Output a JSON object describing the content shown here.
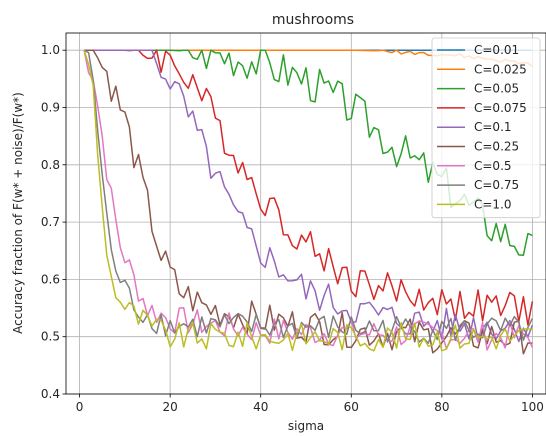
{
  "chart_data": {
    "type": "line",
    "title": "mushrooms",
    "xlabel": "sigma",
    "ylabel": "Accuracy fraction of F(w* + noise)/F(w*)",
    "xlim": [
      -3,
      103
    ],
    "ylim": [
      0.4,
      1.03
    ],
    "xticks": [
      0,
      20,
      40,
      60,
      80,
      100
    ],
    "yticks": [
      0.4,
      0.5,
      0.6,
      0.7,
      0.8,
      0.9,
      1.0
    ],
    "grid": true,
    "legend_position": "top-right",
    "x": {
      "start": 1,
      "end": 100,
      "count": 100
    },
    "series": [
      {
        "name": "C=0.01",
        "color": "#1f77b4",
        "anchors": [
          [
            1,
            1.0
          ],
          [
            100,
            1.0
          ]
        ],
        "noise": 0.0,
        "seed": 1
      },
      {
        "name": "C=0.025",
        "color": "#ff7f0e",
        "anchors": [
          [
            1,
            1.0
          ],
          [
            60,
            1.0
          ],
          [
            70,
            0.998
          ],
          [
            80,
            0.993
          ],
          [
            90,
            0.985
          ],
          [
            100,
            0.975
          ]
        ],
        "noise": 0.004,
        "seed": 2
      },
      {
        "name": "C=0.05",
        "color": "#2ca02c",
        "anchors": [
          [
            1,
            1.0
          ],
          [
            20,
            1.0
          ],
          [
            30,
            0.995
          ],
          [
            40,
            0.98
          ],
          [
            50,
            0.95
          ],
          [
            60,
            0.9
          ],
          [
            70,
            0.83
          ],
          [
            80,
            0.77
          ],
          [
            90,
            0.7
          ],
          [
            100,
            0.65
          ]
        ],
        "noise": 0.035,
        "seed": 3
      },
      {
        "name": "C=0.075",
        "color": "#d62728",
        "anchors": [
          [
            1,
            1.0
          ],
          [
            10,
            1.0
          ],
          [
            17,
            0.995
          ],
          [
            25,
            0.95
          ],
          [
            32,
            0.85
          ],
          [
            38,
            0.77
          ],
          [
            45,
            0.7
          ],
          [
            52,
            0.65
          ],
          [
            60,
            0.6
          ],
          [
            70,
            0.58
          ],
          [
            80,
            0.56
          ],
          [
            90,
            0.55
          ],
          [
            100,
            0.55
          ]
        ],
        "noise": 0.03,
        "seed": 4
      },
      {
        "name": "C=0.1",
        "color": "#9467bd",
        "anchors": [
          [
            1,
            1.0
          ],
          [
            15,
            1.0
          ],
          [
            20,
            0.95
          ],
          [
            25,
            0.87
          ],
          [
            30,
            0.78
          ],
          [
            35,
            0.7
          ],
          [
            40,
            0.65
          ],
          [
            50,
            0.58
          ],
          [
            60,
            0.55
          ],
          [
            70,
            0.53
          ],
          [
            80,
            0.52
          ],
          [
            100,
            0.52
          ]
        ],
        "noise": 0.03,
        "seed": 5
      },
      {
        "name": "C=0.25",
        "color": "#8c564b",
        "anchors": [
          [
            1,
            1.0
          ],
          [
            3,
            1.0
          ],
          [
            6,
            0.96
          ],
          [
            10,
            0.88
          ],
          [
            14,
            0.76
          ],
          [
            18,
            0.64
          ],
          [
            22,
            0.58
          ],
          [
            28,
            0.55
          ],
          [
            40,
            0.53
          ],
          [
            60,
            0.51
          ],
          [
            80,
            0.5
          ],
          [
            100,
            0.5
          ]
        ],
        "noise": 0.03,
        "seed": 6
      },
      {
        "name": "C=0.5",
        "color": "#e377c2",
        "anchors": [
          [
            1,
            1.0
          ],
          [
            3,
            0.96
          ],
          [
            5,
            0.85
          ],
          [
            7,
            0.74
          ],
          [
            9,
            0.66
          ],
          [
            12,
            0.6
          ],
          [
            15,
            0.55
          ],
          [
            20,
            0.53
          ],
          [
            40,
            0.51
          ],
          [
            100,
            0.5
          ]
        ],
        "noise": 0.025,
        "seed": 7
      },
      {
        "name": "C=0.75",
        "color": "#7f7f7f",
        "anchors": [
          [
            1,
            1.0
          ],
          [
            3,
            0.95
          ],
          [
            5,
            0.78
          ],
          [
            7,
            0.64
          ],
          [
            10,
            0.58
          ],
          [
            14,
            0.54
          ],
          [
            20,
            0.52
          ],
          [
            100,
            0.51
          ]
        ],
        "noise": 0.025,
        "seed": 8
      },
      {
        "name": "C=1.0",
        "color": "#bcbd22",
        "anchors": [
          [
            1,
            1.0
          ],
          [
            3,
            0.93
          ],
          [
            5,
            0.72
          ],
          [
            7,
            0.6
          ],
          [
            10,
            0.55
          ],
          [
            15,
            0.52
          ],
          [
            20,
            0.5
          ],
          [
            100,
            0.5
          ]
        ],
        "noise": 0.025,
        "seed": 9
      }
    ]
  }
}
